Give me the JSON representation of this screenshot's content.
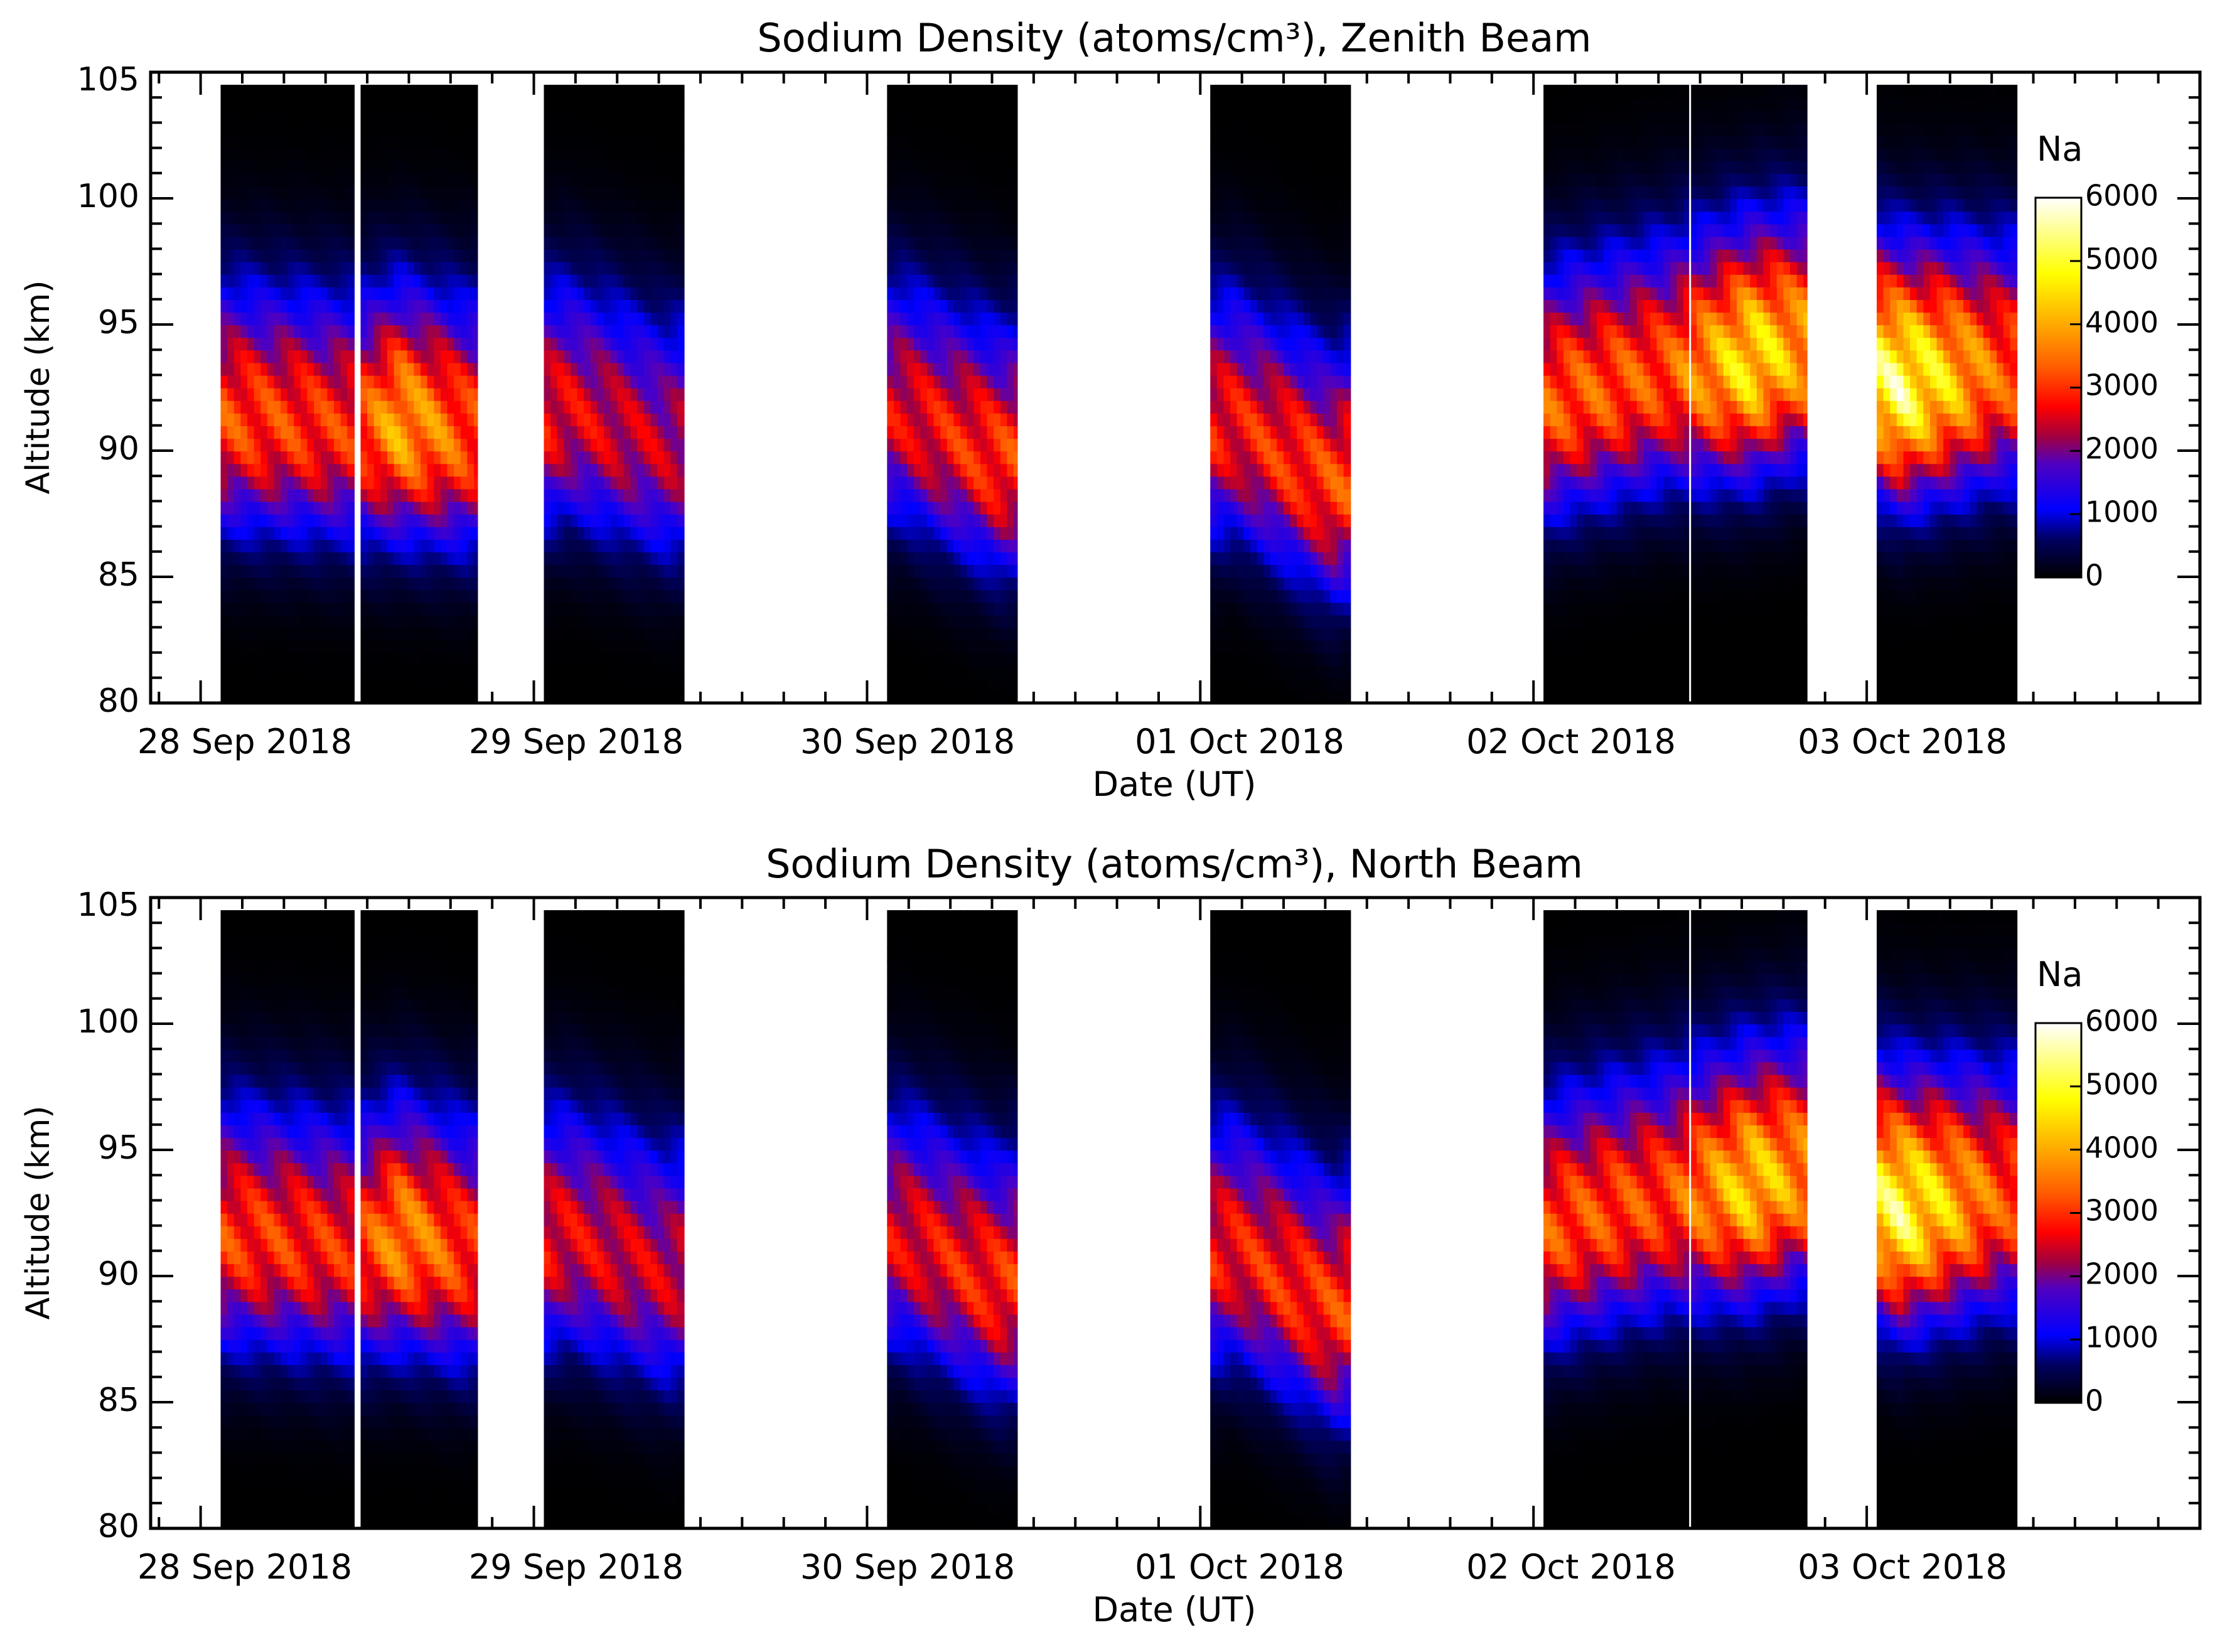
{
  "chart_data": [
    {
      "type": "heatmap",
      "title": "Sodium Density (atoms/cm³), Zenith Beam",
      "xlabel": "Date (UT)",
      "ylabel": "Altitude (km)",
      "xlim_days": [
        -0.15,
        6.0
      ],
      "x_ticks": [
        "28 Sep 2018",
        "29 Sep 2018",
        "30 Sep 2018",
        "01 Oct 2018",
        "02 Oct 2018",
        "03 Oct 2018"
      ],
      "ylim": [
        80,
        105
      ],
      "y_ticks": [
        "80",
        "85",
        "90",
        "95",
        "100",
        "105"
      ],
      "colorbar": {
        "label": "Na",
        "min": 0,
        "max": 6000,
        "ticks": [
          "0",
          "1000",
          "2000",
          "3000",
          "4000",
          "5000",
          "6000"
        ]
      },
      "observation_segments_days": [
        [
          0.06,
          0.46
        ],
        [
          0.48,
          0.83
        ],
        [
          1.03,
          1.45
        ],
        [
          2.06,
          2.45
        ],
        [
          3.03,
          3.45
        ],
        [
          4.03,
          4.47
        ],
        [
          4.47,
          4.82
        ],
        [
          5.03,
          5.45
        ]
      ],
      "layer_profile": [
        {
          "day": 0.1,
          "peak_km": 91.2,
          "peak_density": 3600
        },
        {
          "day": 0.45,
          "peak_km": 90.8,
          "peak_density": 3400
        },
        {
          "day": 0.6,
          "peak_km": 91.0,
          "peak_density": 4600
        },
        {
          "day": 0.8,
          "peak_km": 90.5,
          "peak_density": 3700
        },
        {
          "day": 1.1,
          "peak_km": 91.5,
          "peak_density": 3000
        },
        {
          "day": 1.4,
          "peak_km": 90.0,
          "peak_density": 2700
        },
        {
          "day": 2.1,
          "peak_km": 91.5,
          "peak_density": 3000
        },
        {
          "day": 2.4,
          "peak_km": 89.5,
          "peak_density": 3500
        },
        {
          "day": 3.1,
          "peak_km": 91.0,
          "peak_density": 3200
        },
        {
          "day": 3.4,
          "peak_km": 88.5,
          "peak_density": 3600
        },
        {
          "day": 4.1,
          "peak_km": 92.0,
          "peak_density": 3800
        },
        {
          "day": 4.4,
          "peak_km": 93.0,
          "peak_density": 3700
        },
        {
          "day": 4.65,
          "peak_km": 93.5,
          "peak_density": 5300
        },
        {
          "day": 4.8,
          "peak_km": 94.0,
          "peak_density": 4500
        },
        {
          "day": 5.1,
          "peak_km": 92.5,
          "peak_density": 6000
        },
        {
          "day": 5.4,
          "peak_km": 93.0,
          "peak_density": 3800
        }
      ]
    },
    {
      "type": "heatmap",
      "title": "Sodium Density (atoms/cm³), North Beam",
      "xlabel": "Date (UT)",
      "ylabel": "Altitude (km)",
      "xlim_days": [
        -0.15,
        6.0
      ],
      "x_ticks": [
        "28 Sep 2018",
        "29 Sep 2018",
        "30 Sep 2018",
        "01 Oct 2018",
        "02 Oct 2018",
        "03 Oct 2018"
      ],
      "ylim": [
        80,
        105
      ],
      "y_ticks": [
        "80",
        "85",
        "90",
        "95",
        "100",
        "105"
      ],
      "colorbar": {
        "label": "Na",
        "min": 0,
        "max": 6000,
        "ticks": [
          "0",
          "1000",
          "2000",
          "3000",
          "4000",
          "5000",
          "6000"
        ]
      },
      "observation_segments_days": [
        [
          0.06,
          0.46
        ],
        [
          0.48,
          0.83
        ],
        [
          1.03,
          1.45
        ],
        [
          2.06,
          2.45
        ],
        [
          3.03,
          3.45
        ],
        [
          4.03,
          4.47
        ],
        [
          4.47,
          4.82
        ],
        [
          5.03,
          5.45
        ]
      ],
      "layer_profile": [
        {
          "day": 0.1,
          "peak_km": 91.5,
          "peak_density": 3500
        },
        {
          "day": 0.45,
          "peak_km": 91.0,
          "peak_density": 3300
        },
        {
          "day": 0.6,
          "peak_km": 91.5,
          "peak_density": 4300
        },
        {
          "day": 0.8,
          "peak_km": 90.8,
          "peak_density": 3500
        },
        {
          "day": 1.1,
          "peak_km": 91.5,
          "peak_density": 3000
        },
        {
          "day": 1.4,
          "peak_km": 90.0,
          "peak_density": 2800
        },
        {
          "day": 2.1,
          "peak_km": 91.5,
          "peak_density": 3000
        },
        {
          "day": 2.4,
          "peak_km": 89.5,
          "peak_density": 3400
        },
        {
          "day": 3.1,
          "peak_km": 91.0,
          "peak_density": 3200
        },
        {
          "day": 3.4,
          "peak_km": 88.5,
          "peak_density": 3500
        },
        {
          "day": 4.1,
          "peak_km": 92.0,
          "peak_density": 3700
        },
        {
          "day": 4.4,
          "peak_km": 93.0,
          "peak_density": 3600
        },
        {
          "day": 4.65,
          "peak_km": 93.5,
          "peak_density": 5000
        },
        {
          "day": 4.8,
          "peak_km": 94.0,
          "peak_density": 4300
        },
        {
          "day": 5.1,
          "peak_km": 92.5,
          "peak_density": 5800
        },
        {
          "day": 5.4,
          "peak_km": 93.0,
          "peak_density": 3700
        }
      ]
    }
  ]
}
